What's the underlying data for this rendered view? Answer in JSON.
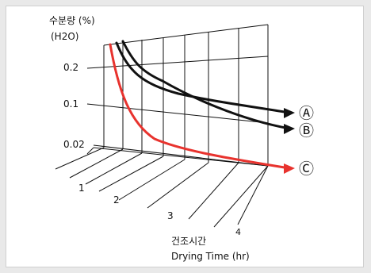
{
  "chart_data": {
    "type": "line",
    "title": "",
    "ylabel": "수분량 (%)",
    "ylabel_unit": "(H2O)",
    "xlabel_ko": "건조시간",
    "xlabel_en": "Drying Time (hr)",
    "y_ticks": [
      "0.2",
      "0.1",
      "0.02"
    ],
    "x_ticks": [
      "1",
      "2",
      "3",
      "4"
    ],
    "series": [
      {
        "name": "Ⓐ",
        "color": "#111111",
        "y": [
          0.25,
          0.17,
          0.13,
          0.11,
          0.1
        ]
      },
      {
        "name": "Ⓑ",
        "color": "#111111",
        "y": [
          0.25,
          0.15,
          0.11,
          0.09,
          0.07
        ]
      },
      {
        "name": "Ⓒ",
        "color": "#e8332e",
        "y": [
          0.25,
          0.05,
          0.02,
          0.01,
          0.005
        ]
      }
    ],
    "grid": true,
    "projection": "3d-perspective"
  }
}
